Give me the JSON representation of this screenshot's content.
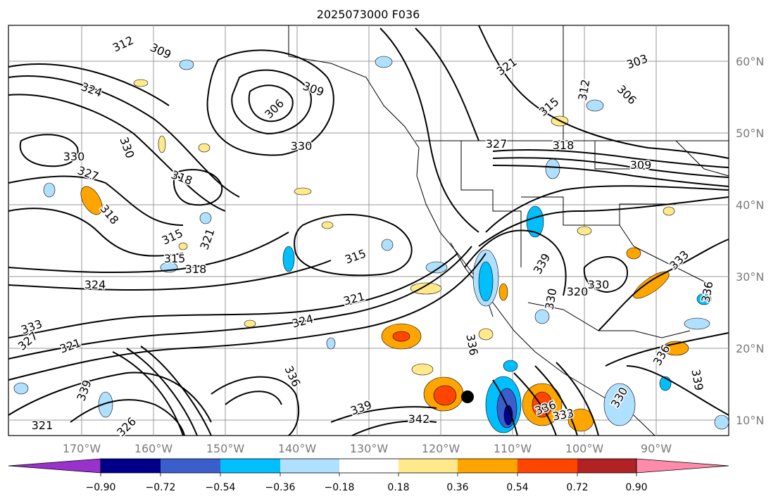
{
  "title": "2025073000 F036",
  "map": {
    "lat_ticks": [
      "60°N",
      "50°N",
      "40°N",
      "30°N",
      "20°N",
      "10°N"
    ],
    "lon_ticks": [
      "170°W",
      "160°W",
      "150°W",
      "140°W",
      "130°W",
      "120°W",
      "110°W",
      "100°W",
      "90°W"
    ],
    "contour_labels": [
      "312",
      "309",
      "306",
      "309",
      "321",
      "303",
      "306",
      "312",
      "315",
      "324",
      "315",
      "327",
      "318",
      "309",
      "330",
      "330",
      "327",
      "318",
      "318",
      "315",
      "321",
      "318",
      "315",
      "330",
      "324",
      "321",
      "324",
      "339",
      "330",
      "320",
      "330",
      "336",
      "333",
      "327",
      "321",
      "339",
      "336",
      "330",
      "336",
      "339",
      "342",
      "321",
      "326",
      "333",
      "336",
      "339",
      "336",
      "333"
    ],
    "storm_marker": "filled-circle"
  },
  "colorbar": {
    "ticks": [
      "−0.90",
      "−0.72",
      "−0.54",
      "−0.36",
      "−0.18",
      "0.18",
      "0.36",
      "0.54",
      "0.72",
      "0.90"
    ],
    "colors": [
      "#9932cc",
      "#00008b",
      "#3a5fcd",
      "#00bfff",
      "#b0e0ff",
      "#ffffff",
      "#ffe98a",
      "#ffa500",
      "#ff4500",
      "#b22222",
      "#ff8aaa"
    ]
  }
}
